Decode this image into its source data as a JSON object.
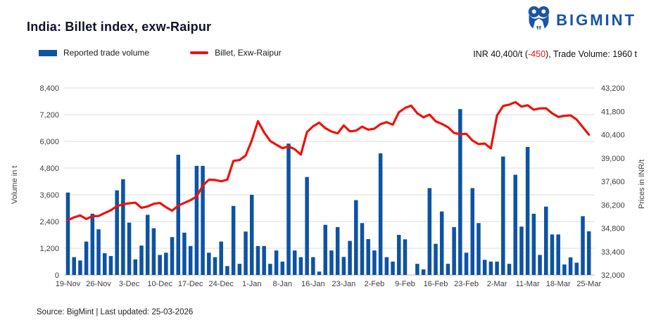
{
  "header": {
    "title": "India: Billet index, exw-Raipur",
    "logo_text": "BIGMINT",
    "brand_color": "#1a53a7"
  },
  "price_summary": {
    "prefix": "INR 40,400/t (",
    "change": "-450",
    "suffix": "), Trade Volume: 1960 t",
    "change_color": "#ec130b"
  },
  "footer": {
    "text": "Source: BigMint | Last updated: 25-03-2026"
  },
  "chart_data": {
    "type": "combo",
    "title": "India: Billet index, exw-Raipur",
    "grid": true,
    "legend_position": "top-left",
    "colors": {
      "bar": "#0d53a3",
      "line": "#ec130b",
      "gridline": "#dcdcdc",
      "baseline": "#b5b5b5"
    },
    "x_tick_labels": [
      "19-Nov",
      "26-Nov",
      "3-Dec",
      "10-Dec",
      "17-Dec",
      "24-Dec",
      "1-Jan",
      "8-Jan",
      "16-Jan",
      "23-Jan",
      "2-Feb",
      "9-Feb",
      "16-Feb",
      "23-Feb",
      "2-Mar",
      "11-Mar",
      "18-Mar",
      "25-Mar"
    ],
    "bars_per_tick": 5,
    "left_axis": {
      "label": "Volume in t",
      "min": 0,
      "max": 8400,
      "step": 1200,
      "ticks": [
        "0",
        "1,200",
        "2,400",
        "3,600",
        "4,800",
        "6,000",
        "7,200",
        "8,400"
      ]
    },
    "right_axis": {
      "label": "Prices in INR/t",
      "min": 32000,
      "max": 43200,
      "step": 1400,
      "ticks": [
        "32,000",
        "33,400",
        "34,800",
        "36,200",
        "37,600",
        "39,000",
        "40,400",
        "41,800",
        "43,200"
      ]
    },
    "series": [
      {
        "name": "Reported trade volume",
        "type": "bar",
        "axis": "left",
        "color": "#0d53a3",
        "values": [
          3700,
          800,
          650,
          1500,
          2750,
          2050,
          975,
          850,
          3800,
          4300,
          2350,
          700,
          1320,
          2700,
          2100,
          900,
          1000,
          1700,
          5400,
          1900,
          1300,
          4900,
          4900,
          1000,
          800,
          1500,
          400,
          3100,
          500,
          1950,
          3600,
          1300,
          1300,
          500,
          1100,
          600,
          5900,
          1100,
          800,
          4400,
          800,
          150,
          2250,
          1100,
          2150,
          810,
          1530,
          3360,
          2330,
          1610,
          1100,
          5460,
          800,
          600,
          1800,
          1600,
          0,
          500,
          250,
          3900,
          1400,
          2850,
          500,
          2150,
          7450,
          1000,
          3900,
          2330,
          680,
          600,
          600,
          5320,
          500,
          4500,
          2170,
          5750,
          2750,
          900,
          3070,
          1820,
          1820,
          470,
          790,
          550,
          2640,
          1960
        ]
      },
      {
        "name": "Billet, Exw-Raipur",
        "type": "line",
        "axis": "right",
        "color": "#ec130b",
        "values": [
          35280,
          35450,
          35560,
          35350,
          35520,
          35530,
          35710,
          35880,
          36120,
          36230,
          36290,
          36330,
          36020,
          36100,
          36260,
          36310,
          36060,
          35850,
          36150,
          36320,
          36480,
          36700,
          37350,
          37700,
          37690,
          37610,
          37700,
          38830,
          38880,
          39150,
          40050,
          41210,
          40540,
          40020,
          39800,
          39590,
          39700,
          39530,
          39210,
          40550,
          40900,
          41120,
          40790,
          40590,
          40480,
          40950,
          40600,
          40640,
          40880,
          40700,
          40760,
          41030,
          41150,
          41000,
          41740,
          42000,
          42140,
          41680,
          41440,
          41600,
          41200,
          41050,
          40850,
          40500,
          40430,
          40450,
          40050,
          39830,
          39870,
          39580,
          41550,
          42120,
          42200,
          42350,
          42080,
          42160,
          41900,
          41970,
          41980,
          41680,
          41460,
          41530,
          41560,
          41300,
          40850,
          40400
        ]
      }
    ]
  }
}
